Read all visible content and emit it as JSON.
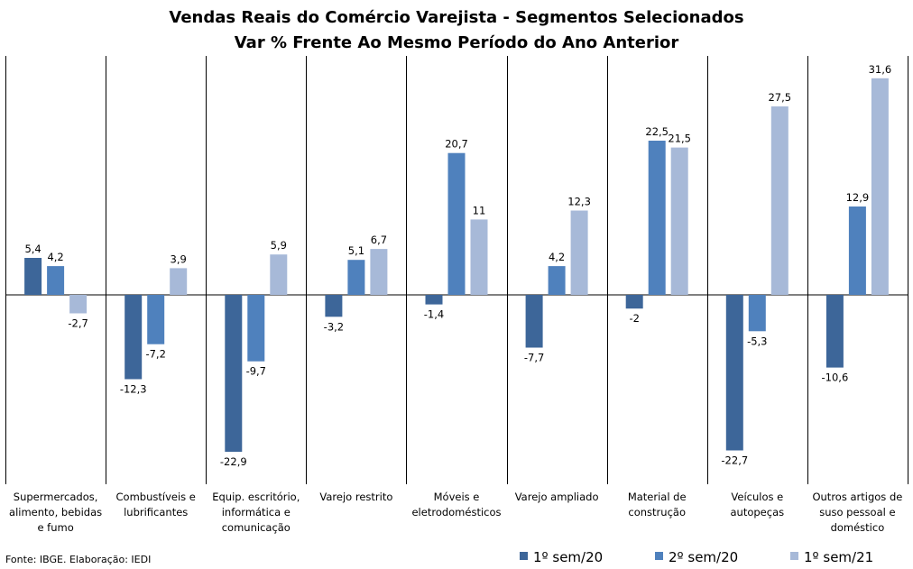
{
  "chart_data": {
    "type": "bar",
    "title": "Vendas Reais do Comércio Varejista - Segmentos Selecionados",
    "subtitle": "Var % Frente Ao Mesmo Período do Ano Anterior",
    "categories": [
      [
        "Supermercados,",
        "alimento, bebidas",
        "e fumo"
      ],
      [
        "Combustíveis e",
        "lubrificantes"
      ],
      [
        "Equip. escritório,",
        "informática e",
        "comunicação"
      ],
      [
        "Varejo restrito"
      ],
      [
        "Móveis e",
        "eletrodomésticos"
      ],
      [
        "Varejo ampliado"
      ],
      [
        "Material de",
        "construção"
      ],
      [
        "Veículos e",
        "autopeças"
      ],
      [
        "Outros artigos de",
        "suso pessoal e",
        "doméstico"
      ]
    ],
    "series": [
      {
        "name": "1º sem/20",
        "color": "#3d6699",
        "values": [
          5.4,
          -12.3,
          -22.9,
          -3.2,
          -1.4,
          -7.7,
          -2,
          -22.7,
          -10.6
        ],
        "labels": [
          "5,4",
          "-12,3",
          "-22,9",
          "-3,2",
          "-1,4",
          "-7,7",
          "-2",
          "-22,7",
          "-10,6"
        ]
      },
      {
        "name": "2º sem/20",
        "color": "#4f81bd",
        "values": [
          4.2,
          -7.2,
          -9.7,
          5.1,
          20.7,
          4.2,
          22.5,
          -5.3,
          12.9
        ],
        "labels": [
          "4,2",
          "-7,2",
          "-9,7",
          "5,1",
          "20,7",
          "4,2",
          "22,5",
          "-5,3",
          "12,9"
        ]
      },
      {
        "name": "1º sem/21",
        "color": "#a7b9d8",
        "values": [
          -2.7,
          3.9,
          5.9,
          6.7,
          11,
          12.3,
          21.5,
          27.5,
          31.6
        ],
        "labels": [
          "-2,7",
          "3,9",
          "5,9",
          "6,7",
          "11",
          "12,3",
          "21,5",
          "27,5",
          "31,6"
        ]
      }
    ],
    "ylim": [
      -26,
      35
    ],
    "legend_position": "bottom-right",
    "grid": false
  },
  "source": "Fonte: IBGE. Elaboração: IEDI"
}
